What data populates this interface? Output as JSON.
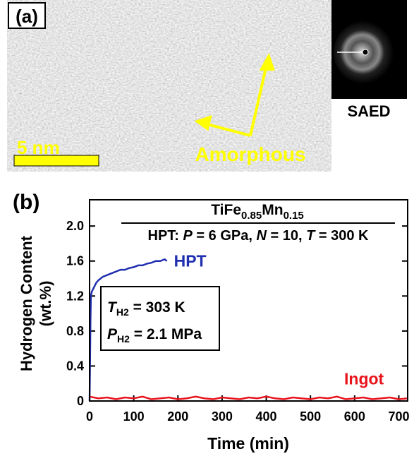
{
  "panel_a": {
    "label": "(a)",
    "scale_bar": "5 nm",
    "annotation": "Amorphous",
    "inset_label": "SAED"
  },
  "chart_data": {
    "type": "line",
    "panel_label": "(b)",
    "title_parts": [
      "TiFe",
      "0.85",
      "Mn",
      "0.15"
    ],
    "subtitle_parts": [
      "HPT: ",
      "P",
      " = 6 GPa, ",
      "N",
      " = 10, ",
      "T",
      " = 300 K"
    ],
    "box_lines": [
      [
        "T",
        "H2",
        " = 303 K"
      ],
      [
        "P",
        "H2",
        " = 2.1 MPa"
      ]
    ],
    "ylabel_lines": [
      "Hydrogen Content",
      "(wt.%)"
    ],
    "xlabel": "Time (min)",
    "xlim": [
      0,
      720
    ],
    "ylim": [
      0,
      2.3
    ],
    "xticks": [
      0,
      100,
      200,
      300,
      400,
      500,
      600,
      700
    ],
    "yticks": [
      0,
      0.4,
      0.8,
      1.2,
      1.6,
      {
        "value": 2,
        "label": "2.0"
      }
    ],
    "series": [
      {
        "name": "HPT",
        "color": "#1f2fb0",
        "x": [
          0,
          1,
          2,
          3,
          5,
          10,
          15,
          20,
          30,
          40,
          50,
          60,
          70,
          80,
          90,
          100,
          110,
          120,
          130,
          140,
          150,
          160,
          170,
          175
        ],
        "values": [
          0,
          0.4,
          0.9,
          1.2,
          1.25,
          1.3,
          1.35,
          1.38,
          1.42,
          1.44,
          1.46,
          1.48,
          1.5,
          1.5,
          1.52,
          1.53,
          1.55,
          1.55,
          1.57,
          1.58,
          1.6,
          1.6,
          1.62,
          1.6
        ]
      },
      {
        "name": "Ingot",
        "color": "#e8141c",
        "x": [
          0,
          20,
          40,
          60,
          80,
          100,
          120,
          140,
          160,
          180,
          200,
          220,
          240,
          260,
          280,
          300,
          320,
          340,
          360,
          380,
          400,
          420,
          440,
          460,
          480,
          500,
          520,
          540,
          560,
          580,
          600,
          620,
          640,
          660,
          680,
          700,
          720
        ],
        "values": [
          0.05,
          0.03,
          0.04,
          0.02,
          0.04,
          0.03,
          0.05,
          0.02,
          0.03,
          0.04,
          0.02,
          0.03,
          0.05,
          0.03,
          0.02,
          0.04,
          0.03,
          0.02,
          0.04,
          0.03,
          0.05,
          0.03,
          0.02,
          0.04,
          0.03,
          0.02,
          0.04,
          0.03,
          0.05,
          0.02,
          0.03,
          0.04,
          0.02,
          0.03,
          0.04,
          0.02,
          0.03
        ]
      }
    ]
  }
}
